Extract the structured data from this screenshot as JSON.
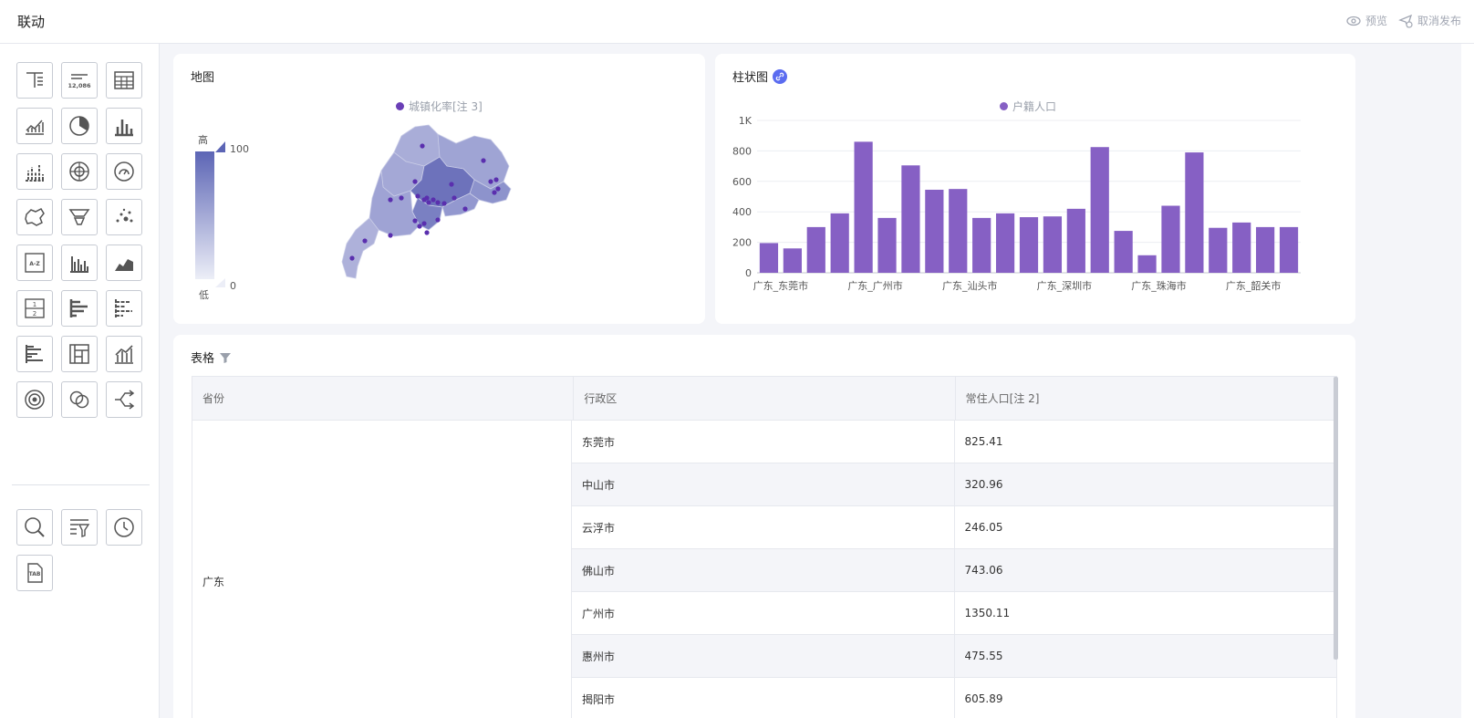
{
  "header": {
    "title": "联动",
    "preview_label": "预览",
    "unpublish_label": "取消发布"
  },
  "sidebar": {
    "tools": [
      {
        "name": "text-icon"
      },
      {
        "name": "number-card-icon",
        "text": "12,086"
      },
      {
        "name": "table-icon"
      },
      {
        "name": "line-chart-icon"
      },
      {
        "name": "pie-chart-icon"
      },
      {
        "name": "bar-chart-icon"
      },
      {
        "name": "stacked-bar-icon"
      },
      {
        "name": "radar-icon"
      },
      {
        "name": "gauge-icon"
      },
      {
        "name": "map-icon"
      },
      {
        "name": "funnel-icon"
      },
      {
        "name": "scatter-icon"
      },
      {
        "name": "sorted-list-icon",
        "text": "A-Z"
      },
      {
        "name": "grouped-bar-icon"
      },
      {
        "name": "area-chart-icon"
      },
      {
        "name": "pagination-icon",
        "text": "1 2"
      },
      {
        "name": "horizontal-bar-icon"
      },
      {
        "name": "horizontal-stacked-icon"
      },
      {
        "name": "horizontal-grouped-icon"
      },
      {
        "name": "treemap-icon"
      },
      {
        "name": "combo-chart-icon"
      },
      {
        "name": "target-icon"
      },
      {
        "name": "venn-icon"
      },
      {
        "name": "sankey-icon"
      }
    ],
    "filters": [
      {
        "name": "search-filter-icon"
      },
      {
        "name": "list-filter-icon"
      },
      {
        "name": "time-filter-icon"
      },
      {
        "name": "tab-icon",
        "text": "TAB"
      }
    ]
  },
  "map_card": {
    "title": "地图",
    "legend_label": "城镇化率[注 3]",
    "visual_map": {
      "high_label": "高",
      "low_label": "低",
      "max": "100",
      "min": "0"
    }
  },
  "bar_card": {
    "title": "柱状图",
    "legend_label": "户籍人口"
  },
  "chart_data": {
    "type": "bar",
    "title": "柱状图",
    "legend": "户籍人口",
    "x_tick_labels": [
      "广东_东莞市",
      "广东_广州市",
      "广东_汕头市",
      "广东_深圳市",
      "广东_珠海市",
      "广东_韶关市"
    ],
    "y_tick_labels": [
      "0",
      "200",
      "400",
      "600",
      "800",
      "1K"
    ],
    "ylim": [
      0,
      1000
    ],
    "values": [
      195,
      160,
      300,
      390,
      860,
      360,
      705,
      545,
      550,
      360,
      390,
      365,
      370,
      420,
      825,
      275,
      115,
      440,
      790,
      295,
      330,
      300,
      300
    ],
    "color": "#8660c4"
  },
  "table_card": {
    "title": "表格",
    "columns": [
      "省份",
      "行政区",
      "常住人口[注 2]"
    ],
    "province": "广东",
    "rows": [
      {
        "district": "东莞市",
        "population": "825.41"
      },
      {
        "district": "中山市",
        "population": "320.96"
      },
      {
        "district": "云浮市",
        "population": "246.05"
      },
      {
        "district": "佛山市",
        "population": "743.06"
      },
      {
        "district": "广州市",
        "population": "1350.11"
      },
      {
        "district": "惠州市",
        "population": "475.55"
      },
      {
        "district": "揭阳市",
        "population": "605.89"
      }
    ]
  }
}
